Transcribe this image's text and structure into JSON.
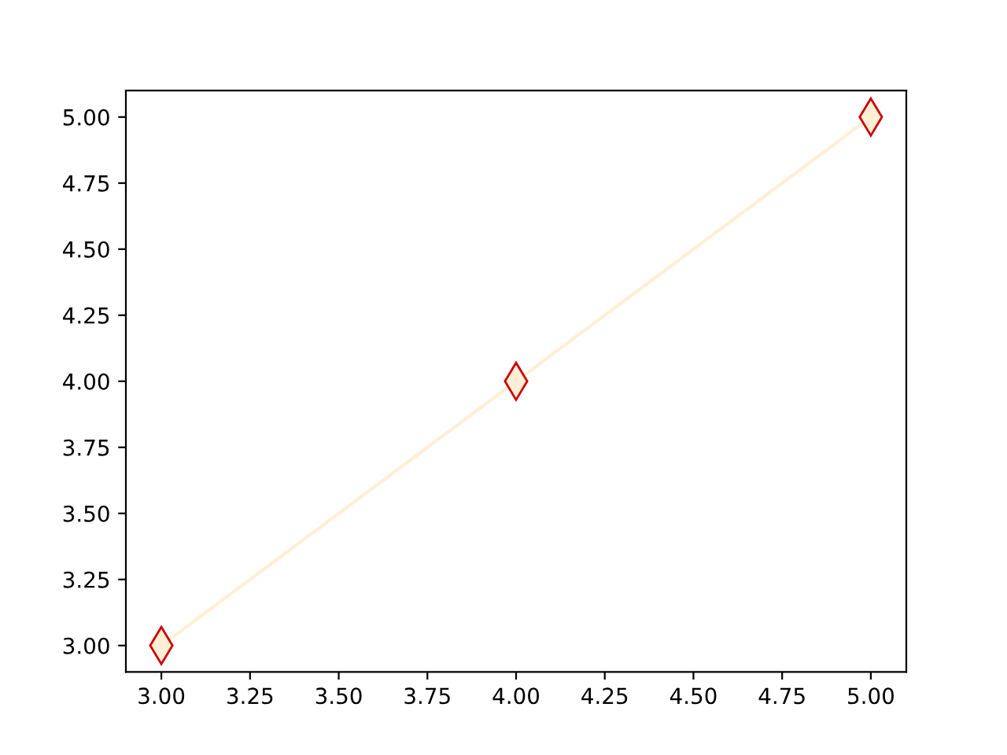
{
  "chart_data": {
    "type": "line",
    "x": [
      3,
      4,
      5
    ],
    "series": [
      {
        "color": "#ffefd5",
        "values": [
          3,
          4,
          5
        ]
      }
    ],
    "marker": "diamond",
    "xlim": [
      2.9,
      5.1
    ],
    "xticks": [
      {
        "value": 3,
        "label": "3.00"
      },
      {
        "value": 3.25,
        "label": "3.25"
      },
      {
        "value": 3.5,
        "label": "3.50"
      },
      {
        "value": 3.75,
        "label": "3.75"
      },
      {
        "value": 4,
        "label": "4.00"
      },
      {
        "value": 4.25,
        "label": "4.25"
      },
      {
        "value": 4.5,
        "label": "4.50"
      },
      {
        "value": 4.75,
        "label": "4.75"
      },
      {
        "value": 5,
        "label": "5.00"
      }
    ],
    "ylim": [
      2.9,
      5.1
    ],
    "yticks": [
      {
        "value": 3,
        "label": "3.00"
      },
      {
        "value": 3.25,
        "label": "3.25"
      },
      {
        "value": 3.5,
        "label": "3.50"
      },
      {
        "value": 3.75,
        "label": "3.75"
      },
      {
        "value": 4,
        "label": "4.00"
      },
      {
        "value": 4.25,
        "label": "4.25"
      },
      {
        "value": 4.5,
        "label": "4.50"
      },
      {
        "value": 4.75,
        "label": "4.75"
      },
      {
        "value": 5,
        "label": "5.00"
      }
    ],
    "grid": false,
    "legend": false
  }
}
